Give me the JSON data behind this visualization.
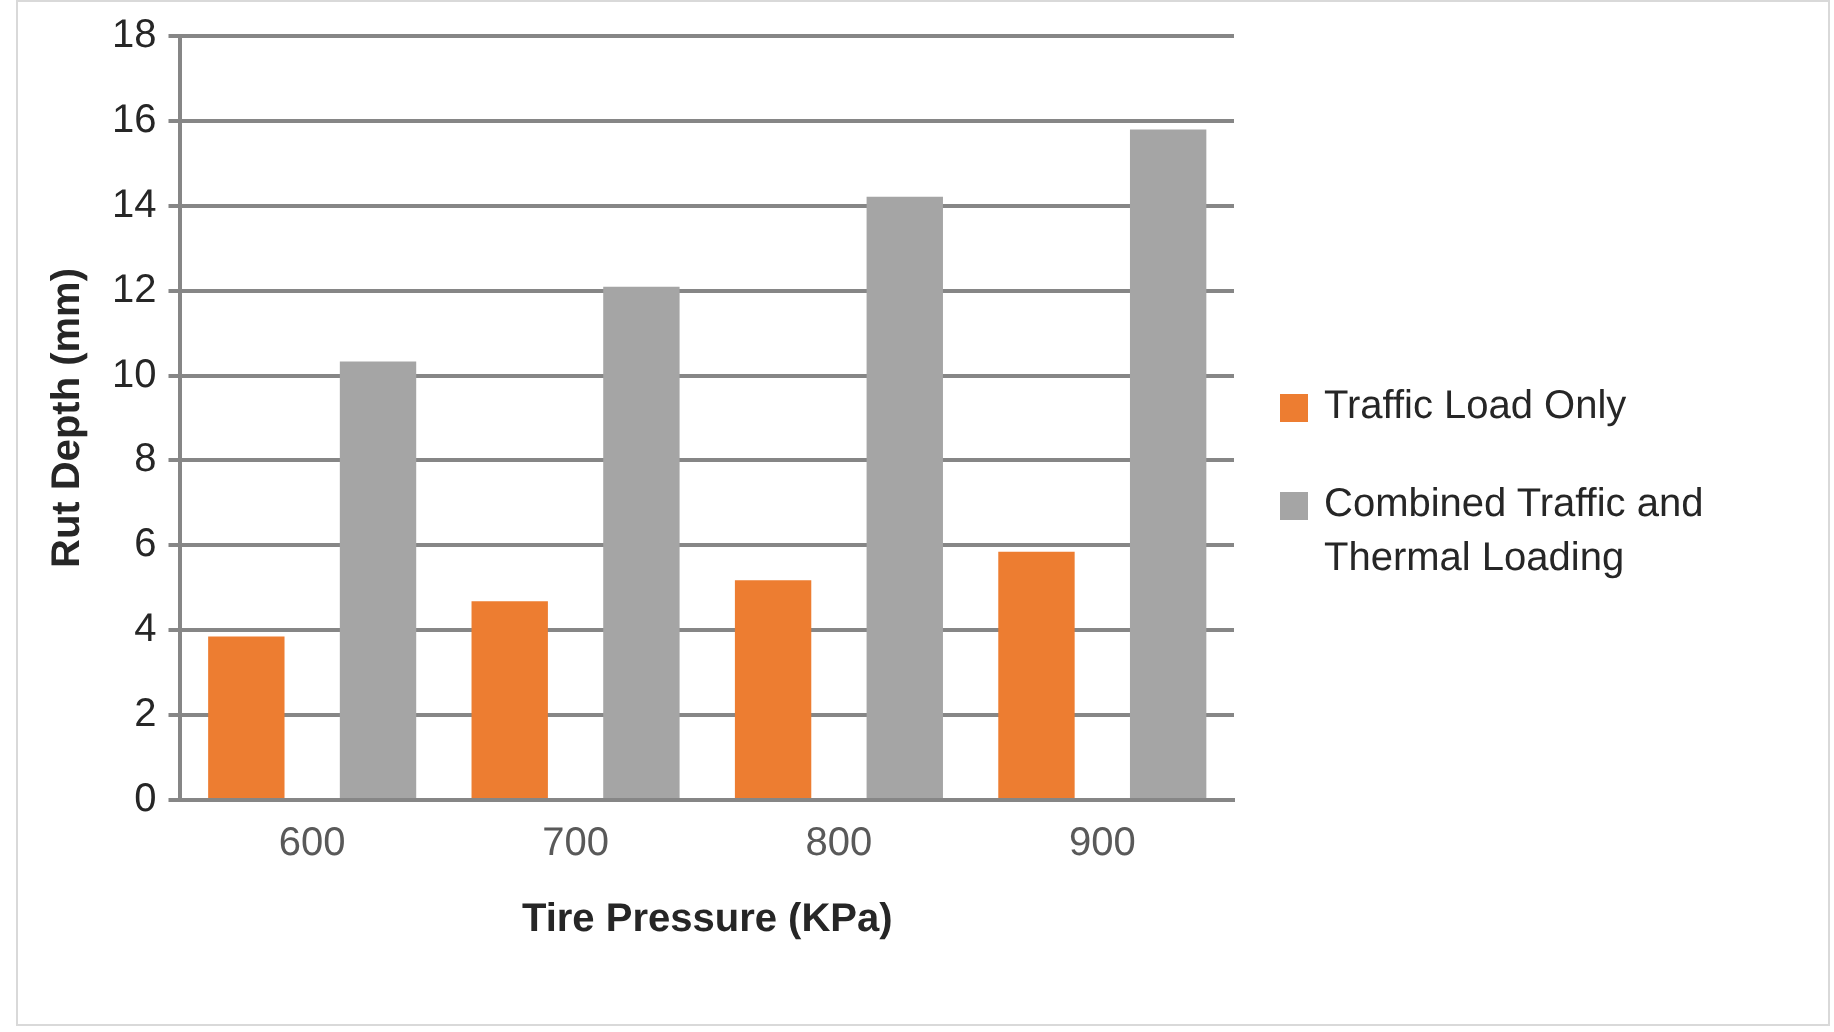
{
  "chart_data": {
    "type": "bar",
    "xlabel": "Tire Pressure (KPa)",
    "ylabel": "Rut Depth (mm)",
    "categories": [
      "600",
      "700",
      "800",
      "900"
    ],
    "series": [
      {
        "name": "Traffic Load Only",
        "color": "#ed7d31",
        "values": [
          3.85,
          4.68,
          5.18,
          5.85
        ]
      },
      {
        "name": "Combined Traffic and Thermal Loading",
        "color": "#a5a5a5",
        "values": [
          10.33,
          12.09,
          14.21,
          15.8
        ]
      }
    ],
    "ylim": [
      0,
      18
    ],
    "yticks": [
      0,
      2,
      4,
      6,
      8,
      10,
      12,
      14,
      16,
      18
    ],
    "grid": "y",
    "legend": "right"
  }
}
